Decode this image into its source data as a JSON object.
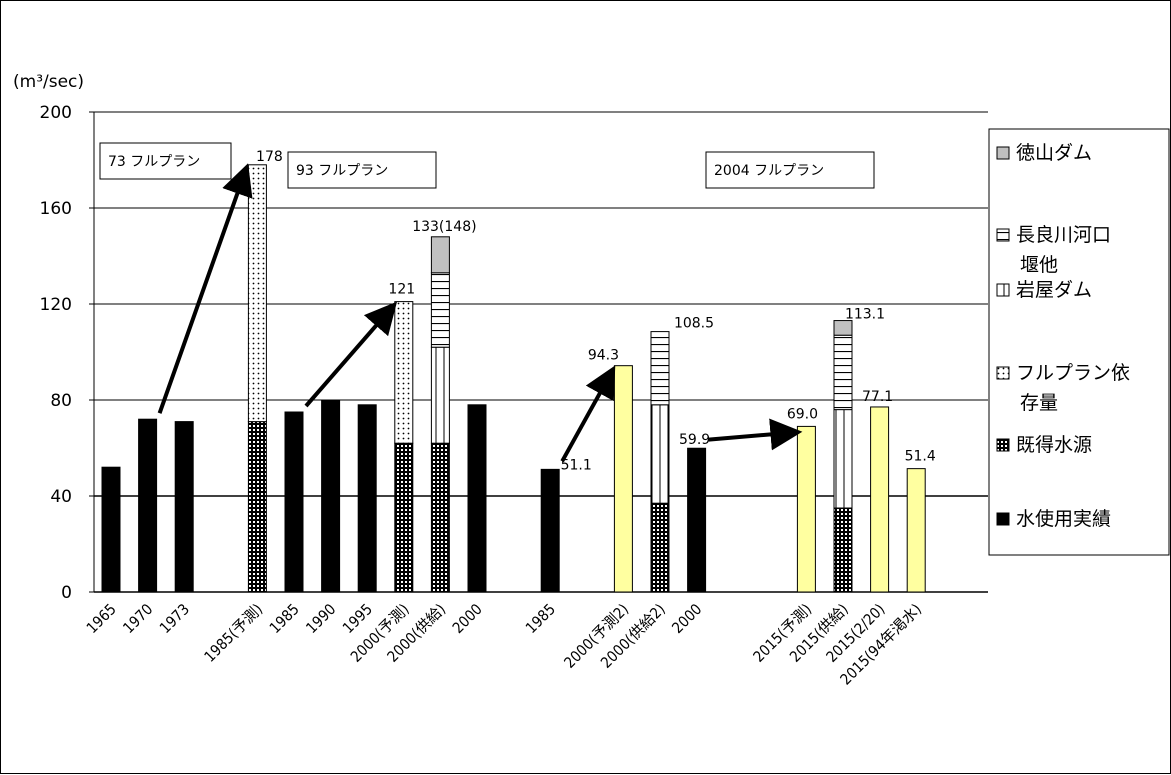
{
  "chart_data": {
    "type": "bar",
    "unit_label": "(m³/sec)",
    "ylim": [
      0,
      200
    ],
    "yticks": [
      0,
      40,
      80,
      120,
      160,
      200
    ],
    "grid": true,
    "legend_position": "right",
    "colors": {
      "tokuyama": "#c0c0c0",
      "nagara": "#ffffff",
      "iwaya": "#ffffff",
      "fullplan": "#ffffff",
      "existing": "#000000",
      "usage": "#000000",
      "yellow": "#ffffa0"
    },
    "legend": [
      {
        "key": "tokuyama",
        "label": "徳山ダム"
      },
      {
        "key": "nagara",
        "label": "長良川河口堰他"
      },
      {
        "key": "iwaya",
        "label": "岩屋ダム"
      },
      {
        "key": "fullplan",
        "label": "フルプラン依存量"
      },
      {
        "key": "existing",
        "label": "既得水源"
      },
      {
        "key": "usage",
        "label": "水使用実績"
      }
    ],
    "plan_labels": [
      "73 フルプラン",
      "93 フルプラン",
      "2004 フルプラン"
    ],
    "bars": [
      {
        "label": "1965",
        "segments": [
          {
            "key": "usage",
            "value": 52
          }
        ]
      },
      {
        "label": "1970",
        "segments": [
          {
            "key": "usage",
            "value": 72
          }
        ]
      },
      {
        "label": "1973",
        "segments": [
          {
            "key": "usage",
            "value": 71
          }
        ]
      },
      {
        "label": "",
        "segments": []
      },
      {
        "label": "1985(予測)",
        "data_label": "178",
        "segments": [
          {
            "key": "existing",
            "value": 71
          },
          {
            "key": "fullplan",
            "value": 107
          }
        ]
      },
      {
        "label": "1985",
        "segments": [
          {
            "key": "usage",
            "value": 75
          }
        ]
      },
      {
        "label": "1990",
        "segments": [
          {
            "key": "usage",
            "value": 80
          }
        ]
      },
      {
        "label": "1995",
        "segments": [
          {
            "key": "usage",
            "value": 78
          }
        ]
      },
      {
        "label": "2000(予測)",
        "data_label": "121",
        "segments": [
          {
            "key": "existing",
            "value": 62
          },
          {
            "key": "fullplan",
            "value": 59
          }
        ]
      },
      {
        "label": "2000(供給)",
        "data_label": "133(148)",
        "segments": [
          {
            "key": "existing",
            "value": 62
          },
          {
            "key": "iwaya",
            "value": 40
          },
          {
            "key": "nagara",
            "value": 31
          },
          {
            "key": "tokuyama",
            "value": 15
          }
        ]
      },
      {
        "label": "2000",
        "segments": [
          {
            "key": "usage",
            "value": 78
          }
        ]
      },
      {
        "label": "",
        "segments": []
      },
      {
        "label": "1985",
        "data_label": "51.1",
        "segments": [
          {
            "key": "usage",
            "value": 51.1
          }
        ]
      },
      {
        "label": "",
        "segments": []
      },
      {
        "label": "2000(予測2)",
        "data_label": "94.3",
        "segments": [
          {
            "key": "yellow",
            "value": 94.3
          }
        ]
      },
      {
        "label": "2000(供給2)",
        "data_label": "108.5",
        "segments": [
          {
            "key": "existing",
            "value": 37
          },
          {
            "key": "iwaya",
            "value": 41
          },
          {
            "key": "nagara",
            "value": 30.5
          }
        ]
      },
      {
        "label": "2000",
        "data_label": "59.9",
        "segments": [
          {
            "key": "usage",
            "value": 59.9
          }
        ]
      },
      {
        "label": "",
        "segments": []
      },
      {
        "label": "",
        "segments": []
      },
      {
        "label": "2015(予測)",
        "data_label": "69.0",
        "segments": [
          {
            "key": "yellow",
            "value": 69.0
          }
        ]
      },
      {
        "label": "2015(供給)",
        "data_label": "113.1",
        "segments": [
          {
            "key": "existing",
            "value": 35
          },
          {
            "key": "iwaya",
            "value": 41
          },
          {
            "key": "nagara",
            "value": 31
          },
          {
            "key": "tokuyama",
            "value": 6.1
          }
        ]
      },
      {
        "label": "2015(2/20)",
        "data_label": "77.1",
        "segments": [
          {
            "key": "yellow",
            "value": 77.1
          }
        ]
      },
      {
        "label": "2015(94年渇水)",
        "data_label": "51.4",
        "segments": [
          {
            "key": "yellow",
            "value": 51.4
          }
        ]
      }
    ],
    "arrows": [
      {
        "from": [
          1,
          72
        ],
        "to": [
          4,
          178
        ]
      },
      {
        "from": [
          5,
          75
        ],
        "to": [
          8,
          121
        ]
      },
      {
        "from": [
          12,
          52
        ],
        "to": [
          14,
          94
        ]
      },
      {
        "from": [
          16,
          61
        ],
        "to": [
          19,
          69
        ]
      }
    ]
  }
}
